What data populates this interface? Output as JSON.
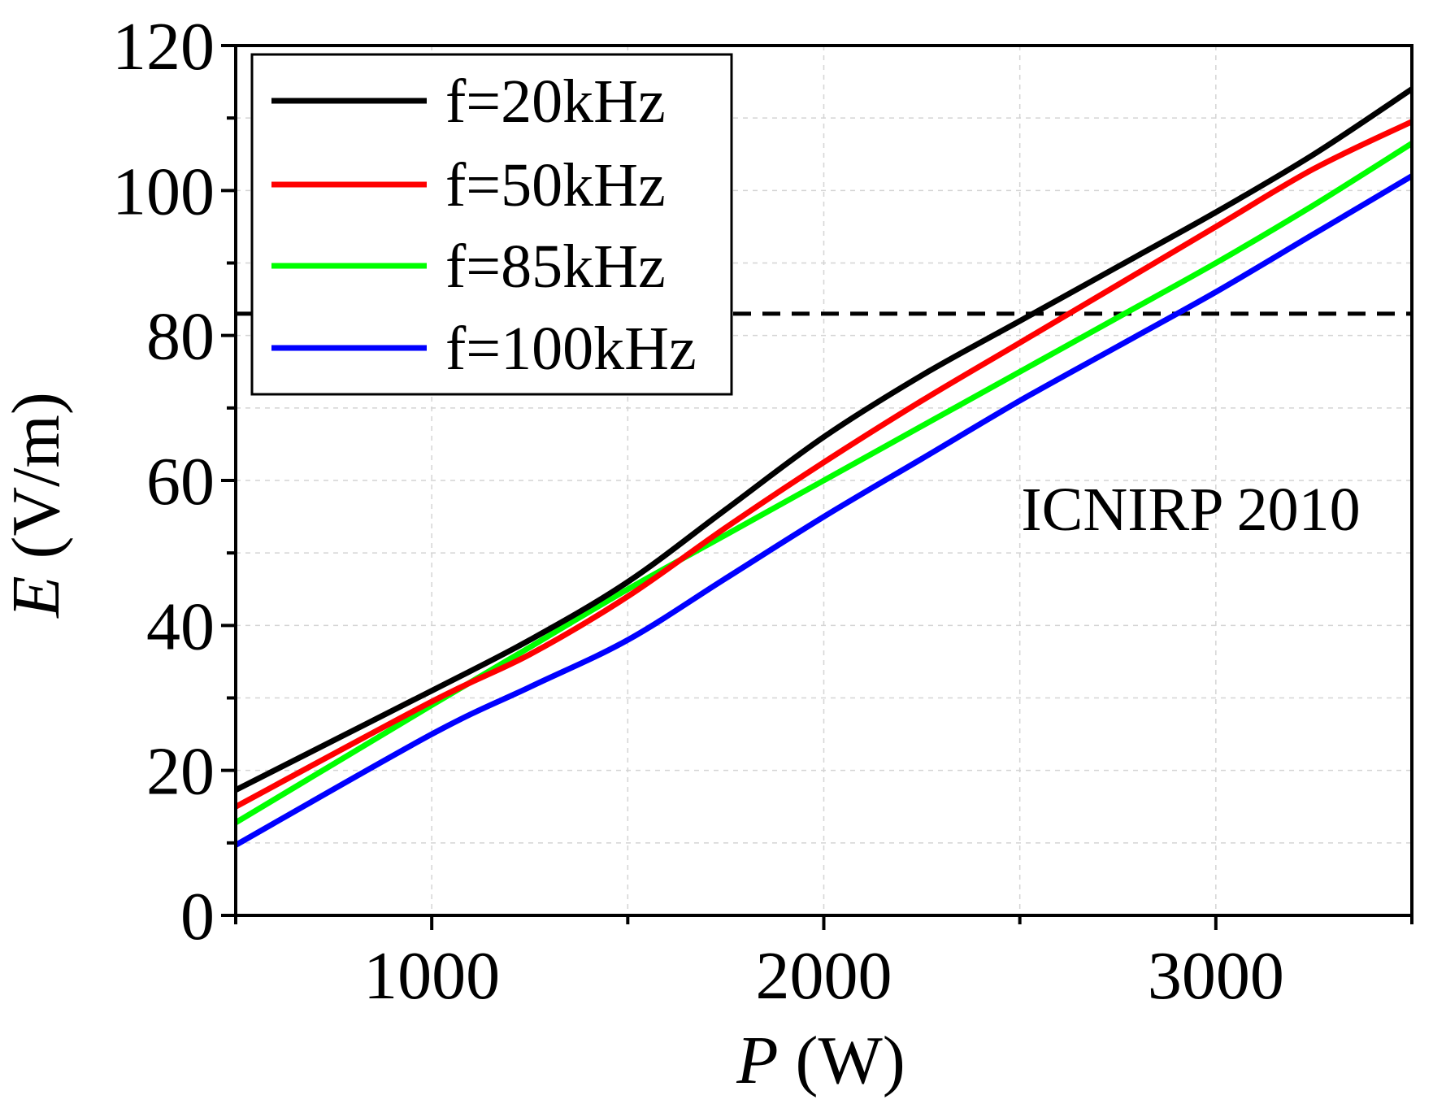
{
  "chart_data": {
    "type": "line",
    "xlabel_var": "P",
    "xlabel_unit": " (W)",
    "ylabel_var": "E",
    "ylabel_unit": " (V/m)",
    "xlim": [
      500,
      3500
    ],
    "ylim": [
      0,
      120
    ],
    "x_ticks": [
      1000,
      2000,
      3000
    ],
    "x_tick_labels": [
      "1000",
      "2000",
      "3000"
    ],
    "x_minor_ticks": [
      500,
      1500,
      2500,
      3500
    ],
    "y_ticks": [
      0,
      20,
      40,
      60,
      80,
      100,
      120
    ],
    "y_tick_labels": [
      "0",
      "20",
      "40",
      "60",
      "80",
      "100",
      "120"
    ],
    "y_minor_ticks": [
      10,
      30,
      50,
      70,
      90,
      110
    ],
    "grid": true,
    "legend_position": "top-left",
    "x": [
      500,
      1000,
      1250,
      1500,
      1750,
      2000,
      2250,
      2500,
      2750,
      3000,
      3250,
      3500
    ],
    "series": [
      {
        "name": "f=20kHz",
        "color": "#000000",
        "values": [
          17.3,
          31,
          38,
          46,
          56,
          66,
          74.5,
          82,
          89.5,
          97,
          105,
          114
        ]
      },
      {
        "name": "f=50kHz",
        "color": "#ff0000",
        "values": [
          15,
          29.5,
          36,
          44,
          53.5,
          62.5,
          71,
          79,
          87,
          95,
          103,
          109.5
        ]
      },
      {
        "name": "f=85kHz",
        "color": "#00ff00",
        "values": [
          12.8,
          29,
          37,
          45,
          52.5,
          60,
          67.5,
          75,
          82.5,
          90,
          98,
          106.5
        ]
      },
      {
        "name": "f=100kHz",
        "color": "#0000ff",
        "values": [
          9.7,
          25,
          31.5,
          38,
          46.5,
          55,
          63,
          71,
          78.5,
          86,
          94,
          102
        ]
      }
    ],
    "reference_line": {
      "label": "ICNIRP 2010",
      "value": 83,
      "x_start": 500,
      "style": "dashed",
      "color": "#000000"
    }
  }
}
